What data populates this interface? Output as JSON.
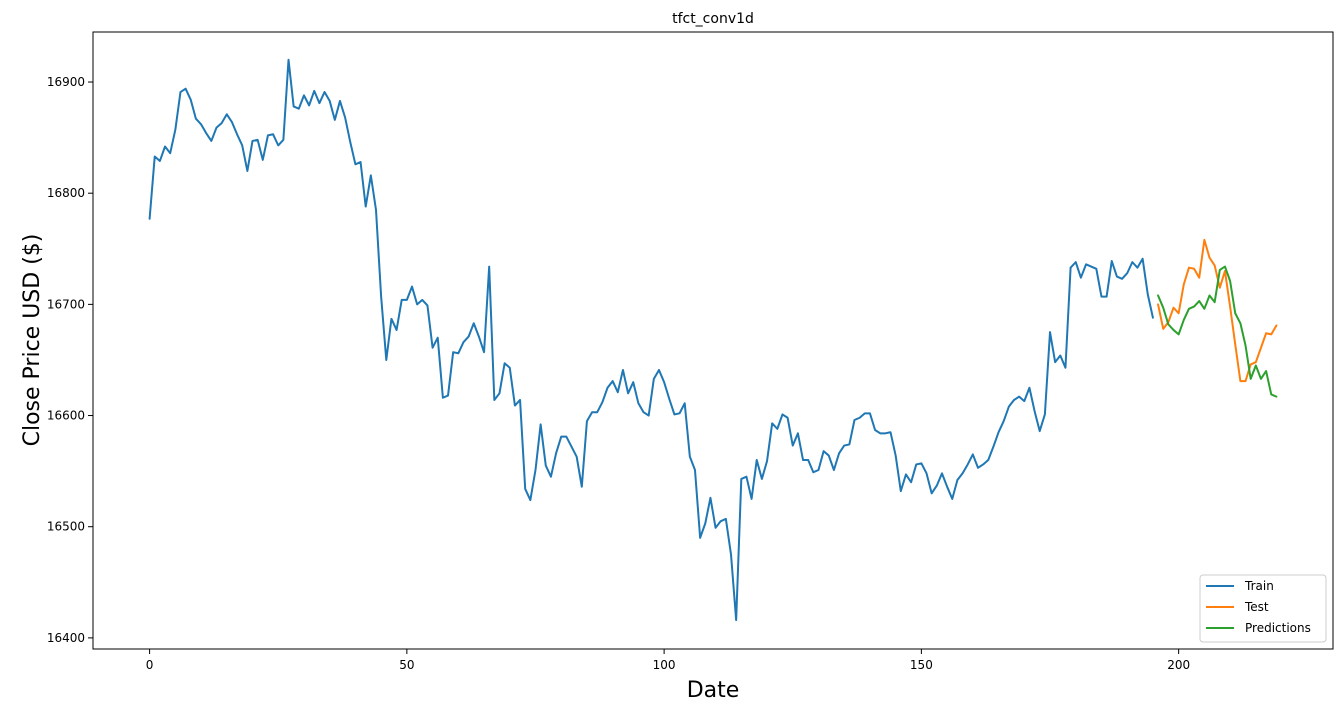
{
  "chart_data": {
    "type": "line",
    "title": "tfct_conv1d",
    "xlabel": "Date",
    "ylabel": "Close Price USD ($)",
    "xlim": [
      -11,
      230
    ],
    "ylim": [
      16390,
      16945
    ],
    "x_ticks": [
      0,
      50,
      100,
      150,
      200
    ],
    "y_ticks": [
      16400,
      16500,
      16600,
      16700,
      16800,
      16900
    ],
    "x_tick_labels": [
      "0",
      "50",
      "100",
      "150",
      "200"
    ],
    "y_tick_labels": [
      "16400",
      "16500",
      "16600",
      "16700",
      "16800",
      "16900"
    ],
    "grid": false,
    "legend_position": "lower right",
    "series": [
      {
        "name": "Train",
        "color": "#1f77b4",
        "x_start": 0,
        "values": [
          16777,
          16833,
          16829,
          16842,
          16836,
          16857,
          16891,
          16894,
          16884,
          16867,
          16862,
          16854,
          16847,
          16859,
          16863,
          16871,
          16864,
          16853,
          16843,
          16820,
          16847,
          16848,
          16830,
          16852,
          16853,
          16843,
          16848,
          16920,
          16878,
          16876,
          16888,
          16879,
          16892,
          16881,
          16891,
          16883,
          16866,
          16883,
          16868,
          16846,
          16826,
          16828,
          16788,
          16816,
          16785,
          16707,
          16650,
          16687,
          16677,
          16704,
          16704,
          16716,
          16700,
          16704,
          16699,
          16661,
          16670,
          16616,
          16618,
          16657,
          16656,
          16666,
          16671,
          16683,
          16671,
          16657,
          16734,
          16614,
          16620,
          16647,
          16643,
          16609,
          16614,
          16534,
          16524,
          16551,
          16592,
          16555,
          16545,
          16566,
          16581,
          16581,
          16572,
          16563,
          16536,
          16595,
          16603,
          16603,
          16612,
          16625,
          16631,
          16621,
          16641,
          16620,
          16630,
          16611,
          16603,
          16600,
          16633,
          16641,
          16630,
          16615,
          16601,
          16602,
          16611,
          16563,
          16551,
          16490,
          16503,
          16526,
          16499,
          16505,
          16507,
          16475,
          16416,
          16543,
          16545,
          16525,
          16560,
          16543,
          16559,
          16593,
          16588,
          16601,
          16598,
          16573,
          16584,
          16560,
          16560,
          16549,
          16551,
          16568,
          16564,
          16551,
          16566,
          16573,
          16574,
          16596,
          16598,
          16602,
          16602,
          16587,
          16584,
          16584,
          16585,
          16564,
          16532,
          16547,
          16540,
          16556,
          16557,
          16548,
          16530,
          16537,
          16548,
          16536,
          16525,
          16542,
          16548,
          16556,
          16565,
          16553,
          16556,
          16560,
          16572,
          16585,
          16595,
          16608,
          16614,
          16617,
          16613,
          16625,
          16604,
          16586,
          16601,
          16675,
          16648,
          16654,
          16643,
          16733,
          16738,
          16724,
          16736,
          16734,
          16732,
          16707,
          16707,
          16739,
          16725,
          16723,
          16728,
          16738,
          16733,
          16741,
          16709,
          16688
        ]
      },
      {
        "name": "Test",
        "color": "#ff7f0e",
        "x_start": 196,
        "values": [
          16700,
          16678,
          16684,
          16697,
          16692,
          16718,
          16733,
          16732,
          16724,
          16758,
          16742,
          16735,
          16715,
          16730,
          16698,
          16664,
          16631,
          16631,
          16646,
          16648,
          16661,
          16674,
          16673,
          16681
        ]
      },
      {
        "name": "Predictions",
        "color": "#2ca02c",
        "x_start": 196,
        "values": [
          16708,
          16697,
          16682,
          16677,
          16673,
          16686,
          16696,
          16698,
          16703,
          16696,
          16708,
          16702,
          16731,
          16734,
          16721,
          16692,
          16683,
          16663,
          16633,
          16645,
          16633,
          16640,
          16619,
          16617
        ]
      }
    ]
  }
}
